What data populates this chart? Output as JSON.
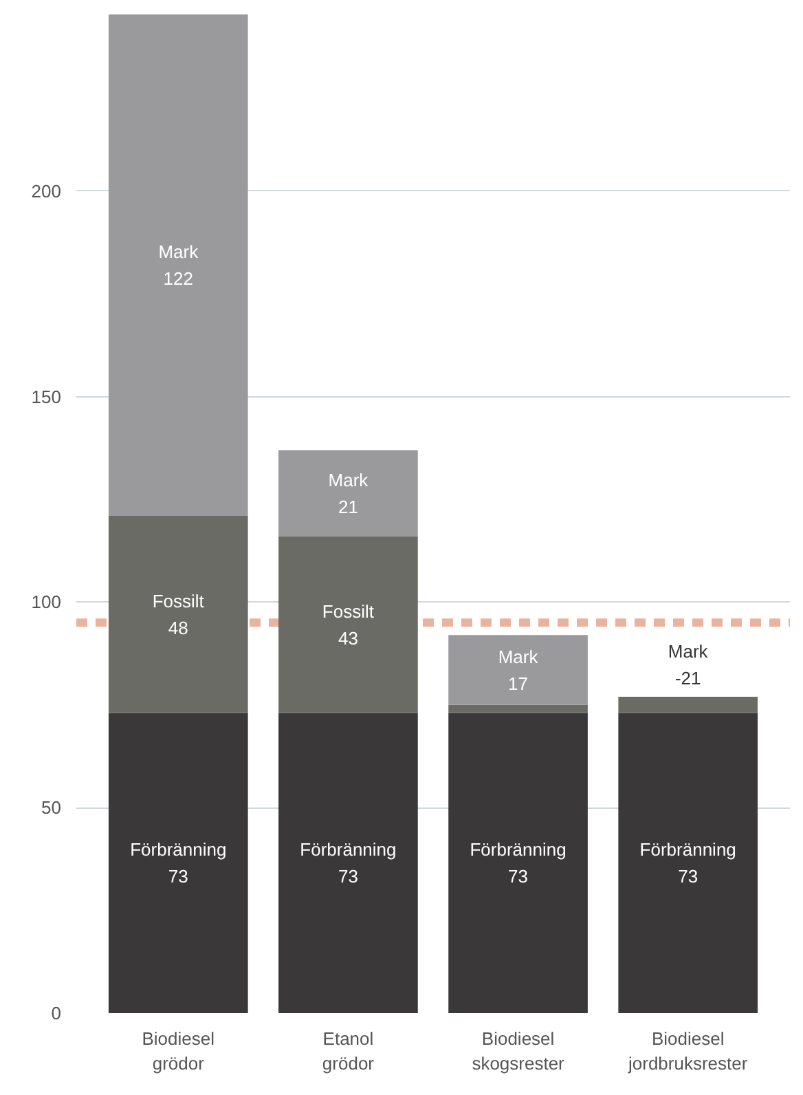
{
  "chart_data": {
    "type": "bar",
    "stacked": true,
    "categories": [
      "Biodiesel\ngrödor",
      "Etanol\ngrödor",
      "Biodiesel\nskogsrester",
      "Biodiesel\njordbruksrester"
    ],
    "series": [
      {
        "name": "Förbränning",
        "color": "#3a3839",
        "values": [
          73,
          73,
          73,
          73
        ],
        "value_labels": [
          "73",
          "73",
          "73",
          "73"
        ]
      },
      {
        "name": "Fossilt",
        "color": "#6b6b65",
        "values": [
          48,
          43,
          2,
          4
        ],
        "value_labels": [
          "48",
          "43",
          null,
          null
        ]
      },
      {
        "name": "Mark",
        "color": "#9a9a9c",
        "values": [
          122,
          21,
          17,
          null
        ],
        "value_labels": [
          "122",
          "21",
          "17",
          null
        ]
      }
    ],
    "ylim": [
      0,
      243
    ],
    "yticks": [
      0,
      50,
      100,
      150,
      200
    ],
    "grid": "y",
    "ref_lines": [
      {
        "axis": "y",
        "value": 95,
        "color": "#e8b4a0",
        "line_style": "dashed"
      }
    ],
    "annotations": [
      "Mark\n-21"
    ]
  }
}
